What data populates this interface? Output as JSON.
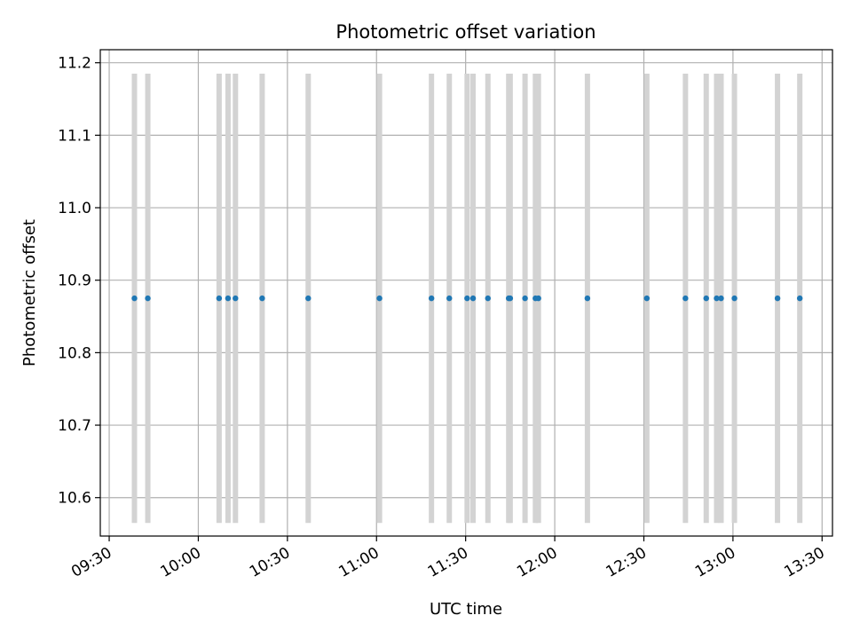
{
  "chart_data": {
    "type": "scatter",
    "title": "Photometric offset variation",
    "xlabel": "UTC time",
    "ylabel": "Photometric offset",
    "xlim_minutes": [
      567.0,
      813.5
    ],
    "ylim": [
      10.547,
      11.218
    ],
    "x_ticks": [
      {
        "minutes": 570,
        "label": "09:30"
      },
      {
        "minutes": 600,
        "label": "10:00"
      },
      {
        "minutes": 630,
        "label": "10:30"
      },
      {
        "minutes": 660,
        "label": "11:00"
      },
      {
        "minutes": 690,
        "label": "11:30"
      },
      {
        "minutes": 720,
        "label": "12:00"
      },
      {
        "minutes": 750,
        "label": "12:30"
      },
      {
        "minutes": 780,
        "label": "13:00"
      },
      {
        "minutes": 810,
        "label": "13:30"
      }
    ],
    "y_ticks": [
      {
        "value": 10.6,
        "label": "10.6"
      },
      {
        "value": 10.7,
        "label": "10.7"
      },
      {
        "value": 10.8,
        "label": "10.8"
      },
      {
        "value": 10.9,
        "label": "10.9"
      },
      {
        "value": 11.0,
        "label": "11.0"
      },
      {
        "value": 11.1,
        "label": "11.1"
      },
      {
        "value": 11.2,
        "label": "11.2"
      }
    ],
    "grid": true,
    "series": [
      {
        "name": "Photometric offset",
        "color": "#1f77b4",
        "x_minutes": [
          578.5,
          583.0,
          607.0,
          610.0,
          612.5,
          621.5,
          637.0,
          661.0,
          678.5,
          684.5,
          690.5,
          692.5,
          697.5,
          704.5,
          705.0,
          710.0,
          713.5,
          714.5,
          731.0,
          751.0,
          764.0,
          771.0,
          774.5,
          776.0,
          780.5,
          795.0,
          802.5
        ],
        "y": [
          10.875,
          10.875,
          10.875,
          10.875,
          10.875,
          10.875,
          10.875,
          10.875,
          10.875,
          10.875,
          10.875,
          10.875,
          10.875,
          10.875,
          10.875,
          10.875,
          10.875,
          10.875,
          10.875,
          10.875,
          10.875,
          10.875,
          10.875,
          10.875,
          10.875,
          10.875,
          10.875
        ]
      }
    ],
    "error_bars": {
      "color": "#d3d3d3",
      "y_low": 10.565,
      "y_high": 11.185
    }
  }
}
